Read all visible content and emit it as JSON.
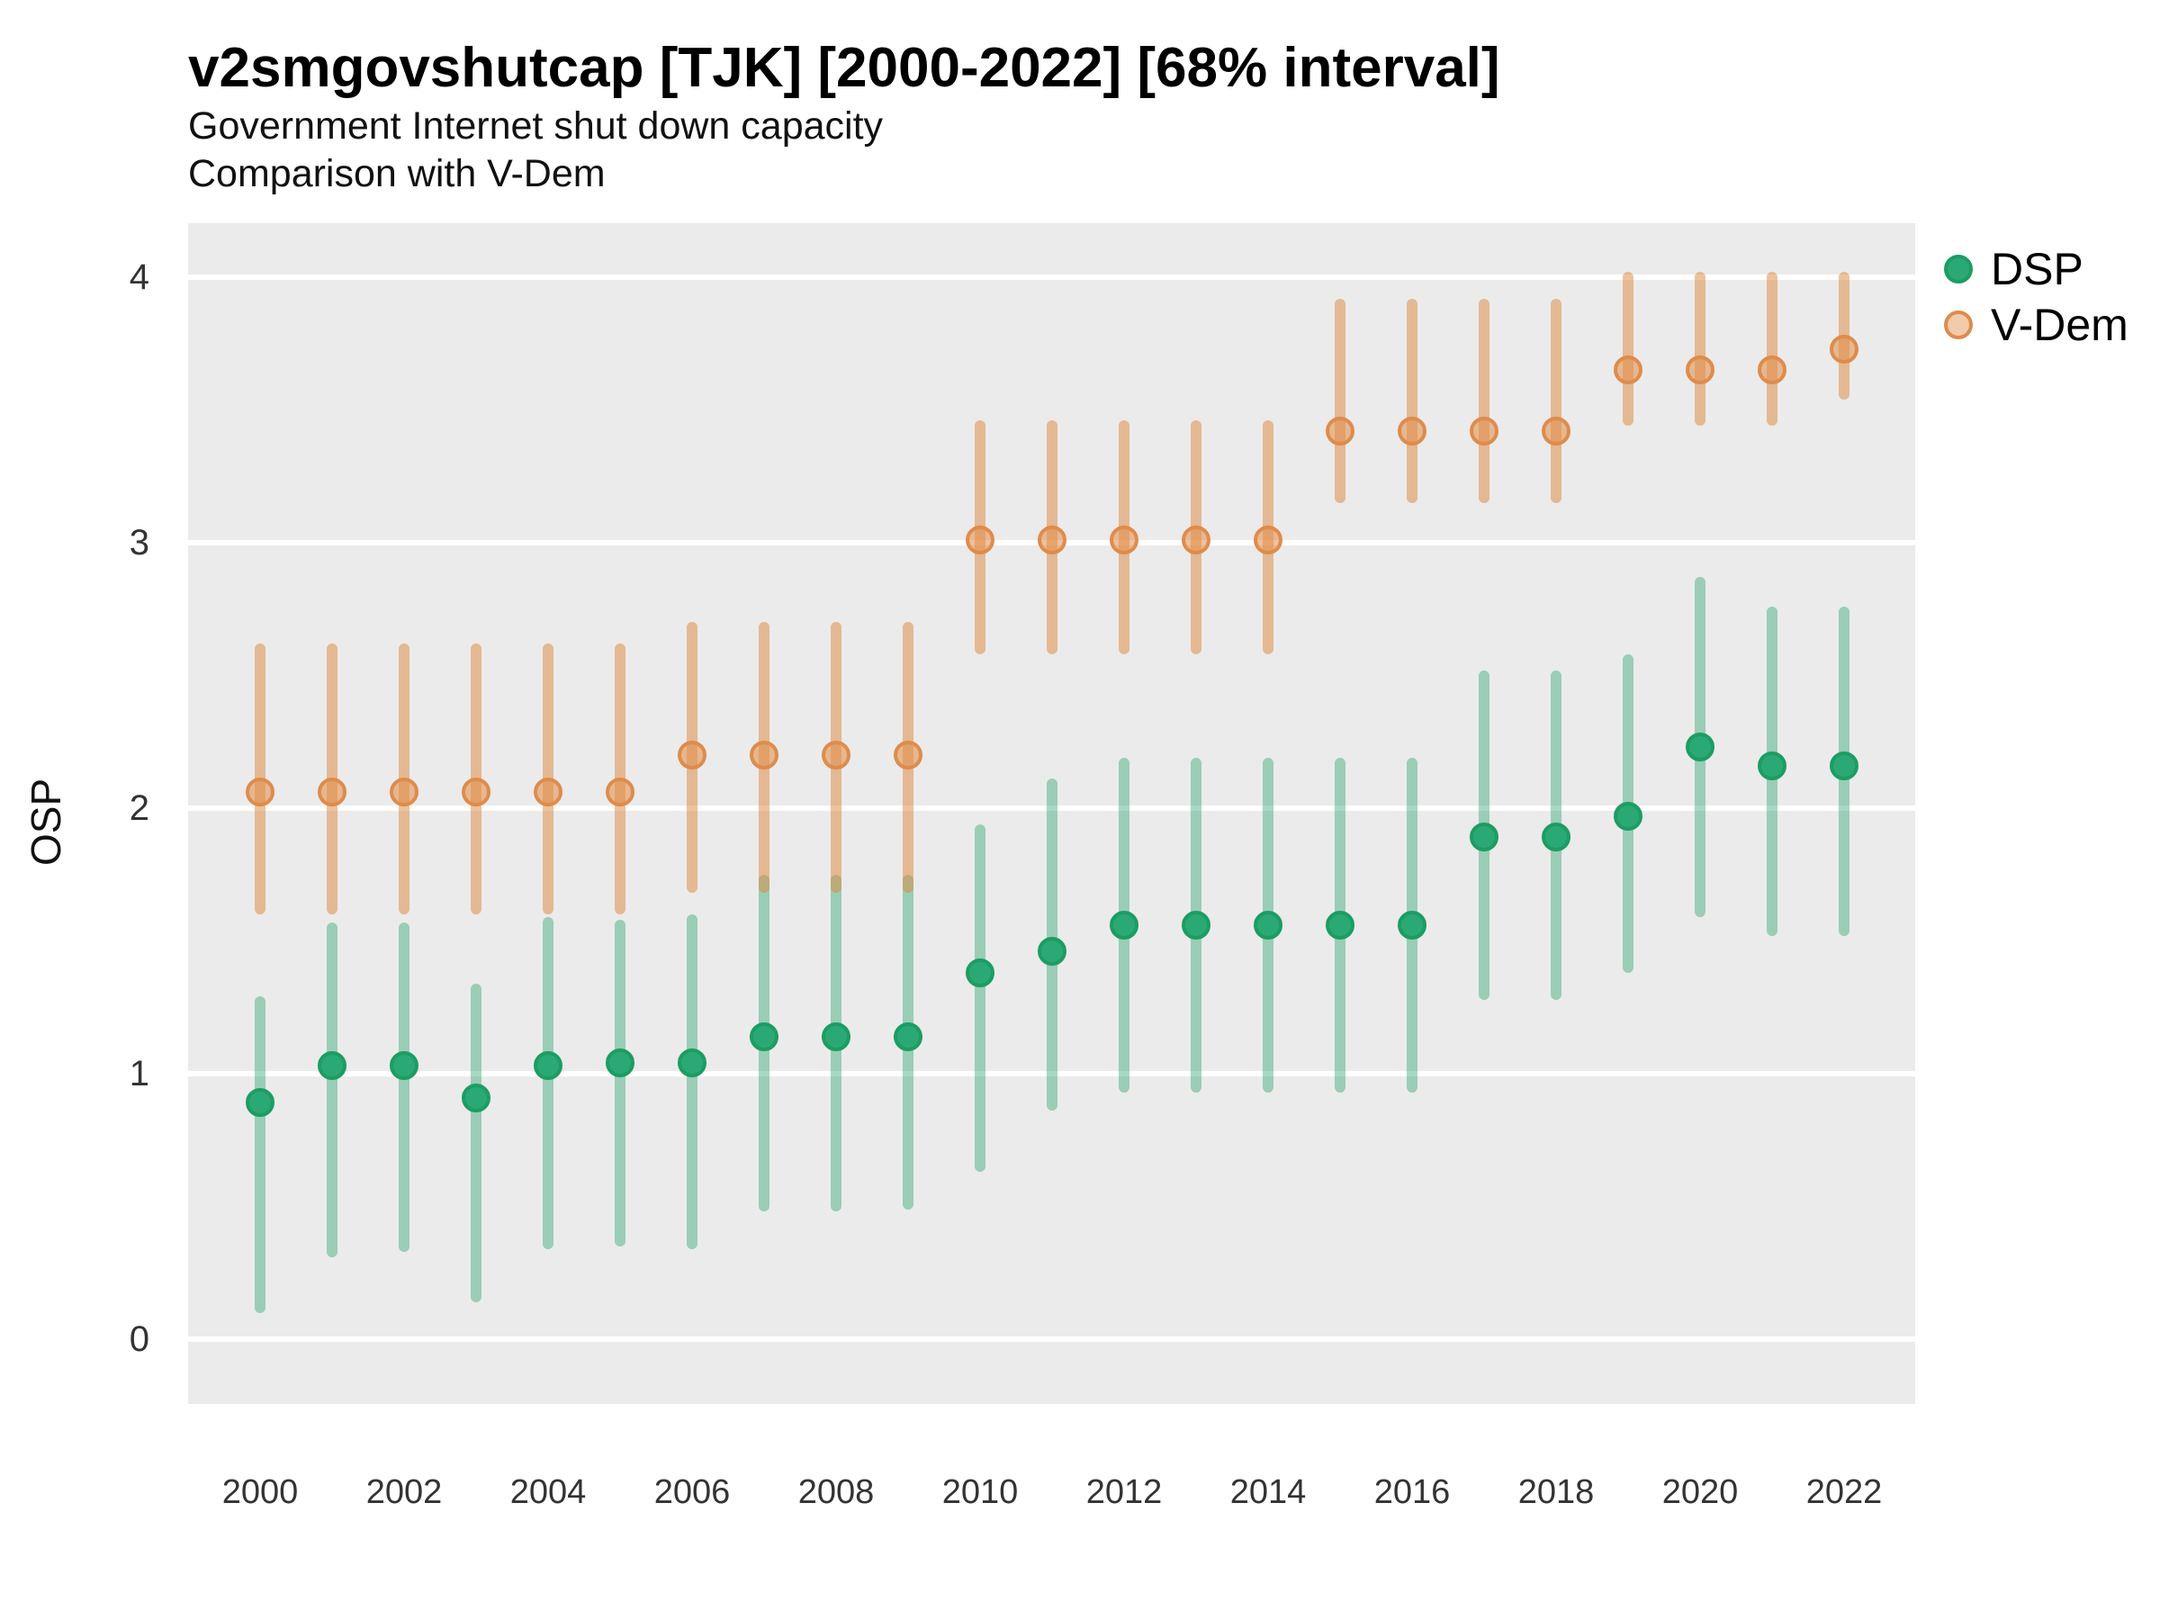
{
  "header": {
    "title": "v2smgovshutcap [TJK] [2000-2022] [68% interval]",
    "subtitle_line1": "Government Internet shut down capacity",
    "subtitle_line2": "Comparison with V-Dem"
  },
  "axes": {
    "y_title": "OSP",
    "y_tick_labels": [
      "0",
      "1",
      "2",
      "3",
      "4"
    ],
    "x_tick_labels": [
      "2000",
      "2002",
      "2004",
      "2006",
      "2008",
      "2010",
      "2012",
      "2014",
      "2016",
      "2018",
      "2020",
      "2022"
    ]
  },
  "legend": {
    "items": [
      {
        "label": "DSP",
        "marker_fill": "#2BA974",
        "marker_border": "#1C9D63",
        "marker_opacity": 1
      },
      {
        "label": "V-Dem",
        "marker_fill": "rgba(226,140,70,0.45)",
        "marker_border": "#DE8C4C",
        "marker_opacity": 1
      }
    ]
  },
  "colors": {
    "panel_background": "#EBEBEB",
    "gridline": "#FFFFFF",
    "title_text": "#000000",
    "tick_text": "#333333",
    "dsp_dot_fill": "#2BA974",
    "dsp_dot_border": "#1C9D63",
    "dsp_bar": "rgba(42,164,108,0.42)",
    "vdem_dot_fill": "rgba(226,140,70,0.55)",
    "vdem_dot_border": "#DE8C4C",
    "vdem_bar": "rgba(222,138,66,0.52)"
  },
  "chart_data": {
    "type": "pointrange",
    "title": "v2smgovshutcap [TJK] [2000-2022] [68% interval]",
    "subtitle": "Government Internet shut down capacity / Comparison with V-Dem",
    "interval": "68%",
    "xlabel": "",
    "ylabel": "OSP",
    "grid": "horizontal-major-only",
    "legend_position": "top-right-outside",
    "ylim": [
      -0.24,
      4.2
    ],
    "y_ticks": [
      0,
      1,
      2,
      3,
      4
    ],
    "x": [
      2000,
      2001,
      2002,
      2003,
      2004,
      2005,
      2006,
      2007,
      2008,
      2009,
      2010,
      2011,
      2012,
      2013,
      2014,
      2015,
      2016,
      2017,
      2018,
      2019,
      2020,
      2021,
      2022
    ],
    "series": [
      {
        "name": "DSP",
        "values": [
          0.89,
          1.03,
          1.03,
          0.91,
          1.03,
          1.04,
          1.04,
          1.14,
          1.14,
          1.14,
          1.38,
          1.46,
          1.56,
          1.56,
          1.56,
          1.56,
          1.56,
          1.89,
          1.89,
          1.97,
          2.23,
          2.16,
          2.16
        ],
        "lo": [
          0.12,
          0.33,
          0.35,
          0.16,
          0.36,
          0.37,
          0.36,
          0.5,
          0.5,
          0.51,
          0.65,
          0.88,
          0.95,
          0.95,
          0.95,
          0.95,
          0.95,
          1.3,
          1.3,
          1.4,
          1.61,
          1.54,
          1.54
        ],
        "hi": [
          1.27,
          1.55,
          1.55,
          1.32,
          1.57,
          1.56,
          1.58,
          1.73,
          1.73,
          1.73,
          1.92,
          2.09,
          2.17,
          2.17,
          2.17,
          2.17,
          2.17,
          2.5,
          2.5,
          2.56,
          2.85,
          2.74,
          2.74
        ]
      },
      {
        "name": "V-Dem",
        "values": [
          2.06,
          2.06,
          2.06,
          2.06,
          2.06,
          2.06,
          2.2,
          2.2,
          2.2,
          2.2,
          3.01,
          3.01,
          3.01,
          3.01,
          3.01,
          3.42,
          3.42,
          3.42,
          3.42,
          3.65,
          3.65,
          3.65,
          3.73
        ],
        "lo": [
          1.62,
          1.62,
          1.62,
          1.62,
          1.62,
          1.62,
          1.7,
          1.7,
          1.7,
          1.7,
          2.6,
          2.6,
          2.6,
          2.6,
          2.6,
          3.17,
          3.17,
          3.17,
          3.17,
          3.46,
          3.46,
          3.46,
          3.56
        ],
        "hi": [
          2.6,
          2.6,
          2.6,
          2.6,
          2.6,
          2.6,
          2.68,
          2.68,
          2.68,
          2.68,
          3.44,
          3.44,
          3.44,
          3.44,
          3.44,
          3.9,
          3.9,
          3.9,
          3.9,
          4.0,
          4.0,
          4.0,
          4.0
        ]
      }
    ]
  }
}
